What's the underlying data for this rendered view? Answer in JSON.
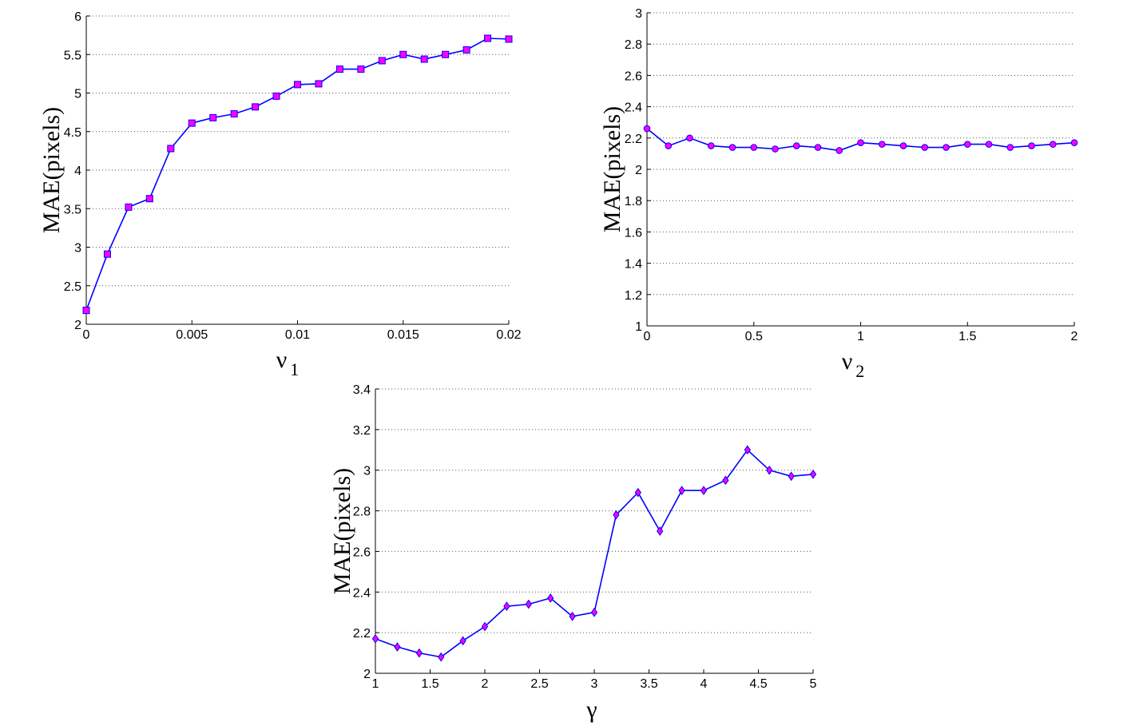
{
  "colors": {
    "line": "#0000ff",
    "marker_fill": "#ff00ff",
    "marker_stroke": "#0000ff"
  },
  "chart_data": [
    {
      "type": "line",
      "xlabel": "ν",
      "xlabel_sub": "1",
      "ylabel": "MAE(pixels)",
      "xlim": [
        0,
        0.02
      ],
      "ylim": [
        2,
        6
      ],
      "xticks": [
        0,
        0.005,
        0.01,
        0.015,
        0.02
      ],
      "xtick_labels": [
        "0",
        "0.005",
        "0.01",
        "0.015",
        "0.02"
      ],
      "yticks": [
        2,
        2.5,
        3,
        3.5,
        4,
        4.5,
        5,
        5.5,
        6
      ],
      "ytick_labels": [
        "2",
        "2.5",
        "3",
        "3.5",
        "4",
        "4.5",
        "5",
        "5.5",
        "6"
      ],
      "grid": "y-dotted",
      "marker": "square",
      "x": [
        0,
        0.001,
        0.002,
        0.003,
        0.004,
        0.005,
        0.006,
        0.007,
        0.008,
        0.009,
        0.01,
        0.011,
        0.012,
        0.013,
        0.014,
        0.015,
        0.016,
        0.017,
        0.018,
        0.019,
        0.02
      ],
      "y": [
        2.18,
        2.91,
        3.52,
        3.63,
        4.28,
        4.61,
        4.68,
        4.73,
        4.82,
        4.96,
        5.11,
        5.12,
        5.31,
        5.31,
        5.42,
        5.5,
        5.44,
        5.5,
        5.56,
        5.71,
        5.7
      ]
    },
    {
      "type": "line",
      "xlabel": "ν",
      "xlabel_sub": "2",
      "ylabel": "MAE(pixels)",
      "xlim": [
        0,
        2
      ],
      "ylim": [
        1,
        3
      ],
      "xticks": [
        0,
        0.5,
        1,
        1.5,
        2
      ],
      "xtick_labels": [
        "0",
        "0.5",
        "1",
        "1.5",
        "2"
      ],
      "yticks": [
        1,
        1.2,
        1.4,
        1.6,
        1.8,
        2,
        2.2,
        2.4,
        2.6,
        2.8,
        3
      ],
      "ytick_labels": [
        "1",
        "1.2",
        "1.4",
        "1.6",
        "1.8",
        "2",
        "2.2",
        "2.4",
        "2.6",
        "2.8",
        "3"
      ],
      "grid": "y-dotted",
      "marker": "circle",
      "x": [
        0,
        0.1,
        0.2,
        0.3,
        0.4,
        0.5,
        0.6,
        0.7,
        0.8,
        0.9,
        1.0,
        1.1,
        1.2,
        1.3,
        1.4,
        1.5,
        1.6,
        1.7,
        1.8,
        1.9,
        2.0
      ],
      "y": [
        2.26,
        2.15,
        2.2,
        2.15,
        2.14,
        2.14,
        2.13,
        2.15,
        2.14,
        2.12,
        2.17,
        2.16,
        2.15,
        2.14,
        2.14,
        2.16,
        2.16,
        2.14,
        2.15,
        2.16,
        2.17
      ]
    },
    {
      "type": "line",
      "xlabel": "γ",
      "xlabel_sub": "",
      "ylabel": "MAE(pixels)",
      "xlim": [
        1,
        5
      ],
      "ylim": [
        2,
        3.4
      ],
      "xticks": [
        1,
        1.5,
        2,
        2.5,
        3,
        3.5,
        4,
        4.5,
        5
      ],
      "xtick_labels": [
        "1",
        "1.5",
        "2",
        "2.5",
        "3",
        "3.5",
        "4",
        "4.5",
        "5"
      ],
      "yticks": [
        2,
        2.2,
        2.4,
        2.6,
        2.8,
        3,
        3.2,
        3.4
      ],
      "ytick_labels": [
        "2",
        "2.2",
        "2.4",
        "2.6",
        "2.8",
        "3",
        "3.2",
        "3.4"
      ],
      "grid": "y-dotted",
      "marker": "diamond",
      "x": [
        1.0,
        1.2,
        1.4,
        1.6,
        1.8,
        2.0,
        2.2,
        2.4,
        2.6,
        2.8,
        3.0,
        3.2,
        3.4,
        3.6,
        3.8,
        4.0,
        4.2,
        4.4,
        4.6,
        4.8,
        5.0
      ],
      "y": [
        2.17,
        2.13,
        2.1,
        2.08,
        2.16,
        2.23,
        2.33,
        2.34,
        2.37,
        2.28,
        2.3,
        2.78,
        2.89,
        2.7,
        2.9,
        2.9,
        2.95,
        3.1,
        3.0,
        2.97,
        2.98
      ]
    }
  ]
}
